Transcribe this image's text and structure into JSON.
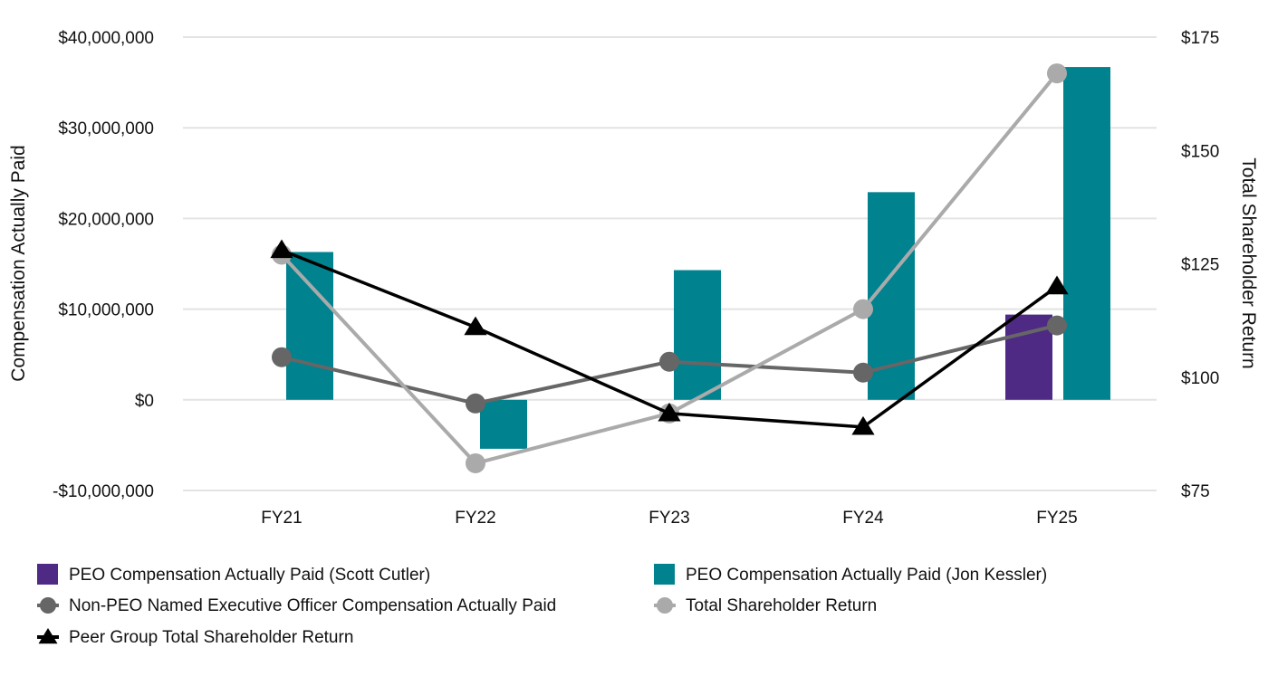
{
  "chart_data": {
    "type": "bar+line",
    "categories": [
      "FY21",
      "FY22",
      "FY23",
      "FY24",
      "FY25"
    ],
    "left_axis": {
      "label": "Compensation Actually Paid",
      "range": [
        -10000000,
        40000000
      ],
      "ticks": [
        40000000,
        30000000,
        20000000,
        10000000,
        0,
        -10000000
      ],
      "tick_labels": [
        "$40,000,000",
        "$30,000,000",
        "$20,000,000",
        "$10,000,000",
        "$0",
        "-$10,000,000"
      ]
    },
    "right_axis": {
      "label": "Total Shareholder Return",
      "range": [
        75,
        175
      ],
      "ticks": [
        175,
        150,
        125,
        100,
        75
      ],
      "tick_labels": [
        "$175",
        "$150",
        "$125",
        "$100",
        "$75"
      ]
    },
    "grid": true,
    "series": [
      {
        "name": "PEO Compensation Actually Paid (Scott Cutler)",
        "type": "bar",
        "axis": "left",
        "color": "#4E2A84",
        "values": [
          null,
          null,
          null,
          null,
          9400000
        ]
      },
      {
        "name": "PEO Compensation Actually Paid (Jon Kessler)",
        "type": "bar",
        "axis": "left",
        "color": "#00828F",
        "values": [
          16300000,
          -5400000,
          14300000,
          22900000,
          36700000
        ]
      },
      {
        "name": "Non-PEO Named Executive Officer Compensation Actually Paid",
        "type": "line",
        "marker": "circle",
        "axis": "left",
        "color": "#666666",
        "values": [
          4700000,
          -400000,
          4200000,
          3000000,
          8200000
        ]
      },
      {
        "name": "Total Shareholder Return",
        "type": "line",
        "marker": "circle",
        "axis": "right",
        "color": "#AAAAAA",
        "values": [
          127,
          81,
          92,
          115,
          167
        ]
      },
      {
        "name": "Peer Group Total Shareholder Return",
        "type": "line",
        "marker": "triangle",
        "axis": "right",
        "color": "#000000",
        "values": [
          128,
          111,
          92,
          89,
          120
        ]
      }
    ],
    "legend_position": "bottom"
  }
}
